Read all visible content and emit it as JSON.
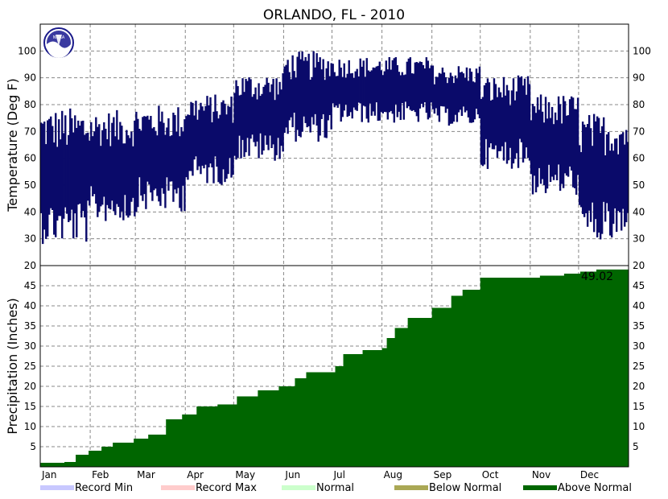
{
  "chart_data": {
    "type": "bar",
    "title": "ORLANDO, FL - 2010",
    "months": [
      "Jan",
      "Feb",
      "Mar",
      "Apr",
      "May",
      "Jun",
      "Jul",
      "Aug",
      "Sep",
      "Oct",
      "Nov",
      "Dec"
    ],
    "temperature": {
      "ylabel": "Temperature (Deg F)",
      "ylim": [
        20,
        110
      ],
      "ticks": [
        30,
        40,
        50,
        60,
        70,
        80,
        90,
        100
      ],
      "monthly_high_low": [
        {
          "month": "Jan",
          "high": 79,
          "low": 28
        },
        {
          "month": "Feb",
          "high": 78,
          "low": 36
        },
        {
          "month": "Mar",
          "high": 80,
          "low": 40
        },
        {
          "month": "Apr",
          "high": 84,
          "low": 50
        },
        {
          "month": "May",
          "high": 92,
          "low": 59
        },
        {
          "month": "Jun",
          "high": 100,
          "low": 66
        },
        {
          "month": "Jul",
          "high": 98,
          "low": 73
        },
        {
          "month": "Aug",
          "high": 98,
          "low": 73
        },
        {
          "month": "Sep",
          "high": 95,
          "low": 72
        },
        {
          "month": "Oct",
          "high": 91,
          "low": 56
        },
        {
          "month": "Nov",
          "high": 84,
          "low": 46
        },
        {
          "month": "Dec",
          "high": 77,
          "low": 28
        }
      ],
      "color": "#0a0a6a"
    },
    "precipitation": {
      "ylabel": "Precipitation (Inches)",
      "ylim": [
        0,
        50
      ],
      "ticks": [
        5,
        10,
        15,
        20,
        25,
        30,
        35,
        40,
        45
      ],
      "upper_tick": 20,
      "total_label": "49.02",
      "cumulative": [
        [
          0,
          1
        ],
        [
          15,
          1.2
        ],
        [
          22,
          3
        ],
        [
          30,
          4
        ],
        [
          38,
          5
        ],
        [
          45,
          6
        ],
        [
          58,
          7
        ],
        [
          67,
          8
        ],
        [
          78,
          11.8
        ],
        [
          88,
          13
        ],
        [
          97,
          15
        ],
        [
          110,
          15.5
        ],
        [
          122,
          17.5
        ],
        [
          135,
          19
        ],
        [
          148,
          20
        ],
        [
          158,
          22
        ],
        [
          165,
          23.5
        ],
        [
          183,
          25
        ],
        [
          188,
          28
        ],
        [
          200,
          29
        ],
        [
          212,
          29.5
        ],
        [
          215,
          32
        ],
        [
          220,
          34.5
        ],
        [
          228,
          37
        ],
        [
          243,
          39.5
        ],
        [
          255,
          42.5
        ],
        [
          262,
          44
        ],
        [
          273,
          47
        ],
        [
          310,
          47.5
        ],
        [
          325,
          48
        ],
        [
          335,
          48.5
        ],
        [
          345,
          49.02
        ],
        [
          365,
          49.02
        ]
      ],
      "color": "#006600"
    },
    "legend": [
      {
        "label": "Record Min",
        "color": "#c8c8ff"
      },
      {
        "label": "Record Max",
        "color": "#ffcccc"
      },
      {
        "label": "Normal",
        "color": "#ccffcc"
      },
      {
        "label": "Below Normal",
        "color": "#aaa855"
      },
      {
        "label": "Above Normal",
        "color": "#006600"
      }
    ],
    "logo": {
      "text": "NOAA"
    }
  }
}
